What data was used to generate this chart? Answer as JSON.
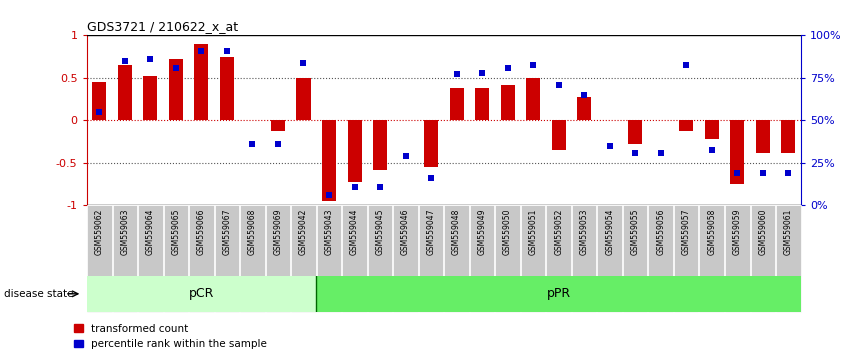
{
  "title": "GDS3721 / 210622_x_at",
  "samples": [
    "GSM559062",
    "GSM559063",
    "GSM559064",
    "GSM559065",
    "GSM559066",
    "GSM559067",
    "GSM559068",
    "GSM559069",
    "GSM559042",
    "GSM559043",
    "GSM559044",
    "GSM559045",
    "GSM559046",
    "GSM559047",
    "GSM559048",
    "GSM559049",
    "GSM559050",
    "GSM559051",
    "GSM559052",
    "GSM559053",
    "GSM559054",
    "GSM559055",
    "GSM559056",
    "GSM559057",
    "GSM559058",
    "GSM559059",
    "GSM559060",
    "GSM559061"
  ],
  "red_bars": [
    0.45,
    0.65,
    0.52,
    0.72,
    0.9,
    0.75,
    0.0,
    -0.12,
    0.5,
    -0.95,
    -0.72,
    -0.58,
    0.0,
    -0.55,
    0.38,
    0.38,
    0.42,
    0.5,
    -0.35,
    0.28,
    0.0,
    -0.28,
    0.0,
    -0.12,
    -0.22,
    -0.75,
    -0.38,
    -0.38
  ],
  "blue_dots": [
    0.1,
    0.7,
    0.72,
    0.62,
    0.82,
    0.82,
    -0.28,
    -0.28,
    0.68,
    -0.88,
    -0.78,
    -0.78,
    -0.42,
    -0.68,
    0.55,
    0.56,
    0.62,
    0.65,
    0.42,
    0.3,
    -0.3,
    -0.38,
    -0.38,
    0.65,
    -0.35,
    -0.62,
    -0.62,
    -0.62
  ],
  "pCR_count": 9,
  "pPR_count": 19,
  "ylim": [
    -1.0,
    1.0
  ],
  "yticks_left": [
    -1.0,
    -0.5,
    0.0,
    0.5,
    1.0
  ],
  "ytick_labels_left": [
    "-1",
    "-0.5",
    "0",
    "0.5",
    "1"
  ],
  "right_ytick_positions": [
    -1.0,
    -0.5,
    0.0,
    0.5,
    1.0
  ],
  "right_yticklabels": [
    "0%",
    "25%",
    "50%",
    "75%",
    "100%"
  ],
  "bar_color": "#cc0000",
  "dot_color": "#0000cc",
  "bar_width": 0.55,
  "background_plot": "#ffffff",
  "pCR_color": "#ccffcc",
  "pPR_color": "#66ee66",
  "label_bg_color": "#c8c8c8",
  "dotted_line_color": "#555555",
  "red_zero_line_color": "#cc0000",
  "legend_red": "transformed count",
  "legend_blue": "percentile rank within the sample",
  "disease_state_label": "disease state",
  "pCR_label": "pCR",
  "pPR_label": "pPR"
}
